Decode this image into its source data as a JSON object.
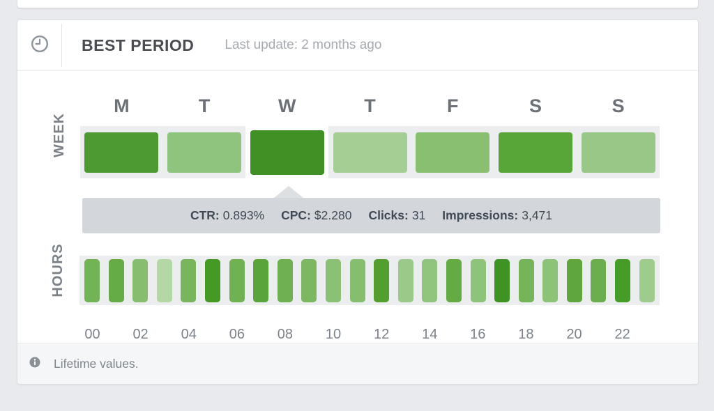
{
  "header": {
    "title": "BEST PERIOD",
    "last_update": "Last update: 2 months ago",
    "icon": "clock-icon"
  },
  "week": {
    "axis_label": "WEEK",
    "days": [
      {
        "day": "monday",
        "label": "M",
        "color": "#4d9a33",
        "selected": false
      },
      {
        "day": "tuesday",
        "label": "T",
        "color": "#8ec47d",
        "selected": false
      },
      {
        "day": "wednesday",
        "label": "W",
        "color": "#3f9126",
        "selected": true
      },
      {
        "day": "thursday",
        "label": "T",
        "color": "#a4ce93",
        "selected": false
      },
      {
        "day": "friday",
        "label": "F",
        "color": "#89bf71",
        "selected": false
      },
      {
        "day": "saturday",
        "label": "S",
        "color": "#58a637",
        "selected": false
      },
      {
        "day": "sunday",
        "label": "S",
        "color": "#99c787",
        "selected": false
      }
    ]
  },
  "tooltip": {
    "metrics": [
      {
        "label": "CTR:",
        "value": "0.893%"
      },
      {
        "label": "CPC:",
        "value": "$2.280"
      },
      {
        "label": "Clicks:",
        "value": "31"
      },
      {
        "label": "Impressions:",
        "value": "3,471"
      }
    ]
  },
  "hours": {
    "axis_label": "HOURS",
    "bars": [
      {
        "hour": "00",
        "color": "#72b356"
      },
      {
        "hour": "01",
        "color": "#66ac46"
      },
      {
        "hour": "02",
        "color": "#87bd6e"
      },
      {
        "hour": "03",
        "color": "#b4d8a4"
      },
      {
        "hour": "04",
        "color": "#79b55c"
      },
      {
        "hour": "05",
        "color": "#459a24"
      },
      {
        "hour": "06",
        "color": "#70b152"
      },
      {
        "hour": "07",
        "color": "#5aa53a"
      },
      {
        "hour": "08",
        "color": "#6fb052"
      },
      {
        "hour": "09",
        "color": "#7cb761"
      },
      {
        "hour": "10",
        "color": "#8bc175"
      },
      {
        "hour": "11",
        "color": "#86be6f"
      },
      {
        "hour": "12",
        "color": "#529f30"
      },
      {
        "hour": "13",
        "color": "#9ac989"
      },
      {
        "hour": "14",
        "color": "#91c57d"
      },
      {
        "hour": "15",
        "color": "#65ab44"
      },
      {
        "hour": "16",
        "color": "#8ec47a"
      },
      {
        "hour": "17",
        "color": "#3e9422"
      },
      {
        "hour": "18",
        "color": "#76b45a"
      },
      {
        "hour": "19",
        "color": "#8cc377"
      },
      {
        "hour": "20",
        "color": "#5fa73d"
      },
      {
        "hour": "21",
        "color": "#6cae4d"
      },
      {
        "hour": "22",
        "color": "#459c26"
      },
      {
        "hour": "23",
        "color": "#9fcb8d"
      }
    ],
    "tick_labels": [
      "00",
      "02",
      "04",
      "06",
      "08",
      "10",
      "12",
      "14",
      "16",
      "18",
      "20",
      "22"
    ]
  },
  "footer": {
    "icon": "info-icon",
    "note": "Lifetime values."
  },
  "ui_colors": {
    "page_background": "#e9eaed",
    "card_background": "#ffffff",
    "strip_background": "#ebedee",
    "tooltip_background": "#d3d7db",
    "footer_background": "#f5f6f7",
    "title_text": "#494d52",
    "muted_text": "#a6abb1",
    "axis_text": "#7b8187"
  },
  "chart_data": {
    "type": "heatmap",
    "title": "BEST PERIOD",
    "rows": [
      {
        "name": "WEEK",
        "categories": [
          "M",
          "T",
          "W",
          "T",
          "F",
          "S",
          "S"
        ],
        "intensity": [
          0.78,
          0.42,
          0.92,
          0.28,
          0.46,
          0.68,
          0.36
        ],
        "selected_index": 2
      },
      {
        "name": "HOURS",
        "categories": [
          "00",
          "01",
          "02",
          "03",
          "04",
          "05",
          "06",
          "07",
          "08",
          "09",
          "10",
          "11",
          "12",
          "13",
          "14",
          "15",
          "16",
          "17",
          "18",
          "19",
          "20",
          "21",
          "22",
          "23"
        ],
        "intensity": [
          0.55,
          0.62,
          0.45,
          0.18,
          0.52,
          0.88,
          0.56,
          0.68,
          0.57,
          0.52,
          0.44,
          0.46,
          0.74,
          0.32,
          0.36,
          0.64,
          0.42,
          0.95,
          0.54,
          0.43,
          0.66,
          0.6,
          0.86,
          0.3
        ],
        "x_tick_labels": [
          "00",
          "02",
          "04",
          "06",
          "08",
          "10",
          "12",
          "14",
          "16",
          "18",
          "20",
          "22"
        ]
      }
    ],
    "selected_point": {
      "row": "WEEK",
      "category": "W",
      "metrics": {
        "CTR": "0.893%",
        "CPC": "$2.280",
        "Clicks": "31",
        "Impressions": "3,471"
      }
    },
    "legend_position": "none",
    "grid": false
  }
}
